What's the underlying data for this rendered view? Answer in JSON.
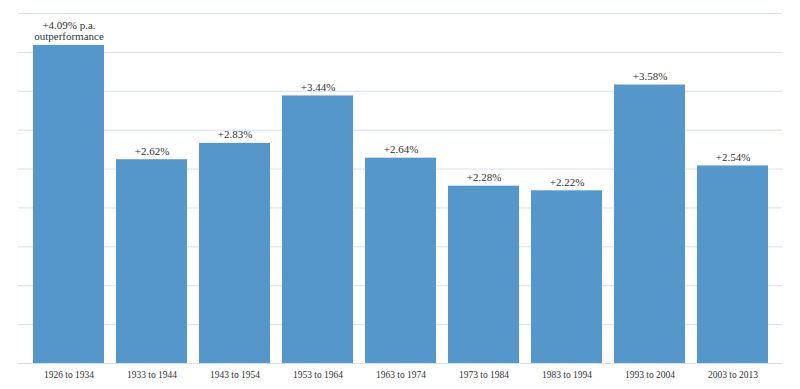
{
  "chart_data": {
    "type": "bar",
    "categories": [
      "1926 to 1934",
      "1933 to 1944",
      "1943 to 1954",
      "1953 to 1964",
      "1963 to 1974",
      "1973 to 1984",
      "1983 to 1994",
      "1993 to 2004",
      "2003 to 2013"
    ],
    "values": [
      4.09,
      2.62,
      2.83,
      3.44,
      2.64,
      2.28,
      2.22,
      3.58,
      2.54
    ],
    "value_labels": [
      "+4.09% p.a.\noutperformance",
      "+2.62%",
      "+2.83%",
      "+3.44%",
      "+2.64%",
      "+2.28%",
      "+2.22%",
      "+3.58%",
      "+2.54%"
    ],
    "color": "#5596cb",
    "ylim": [
      0,
      4.5
    ],
    "yticks": [
      0,
      0.5,
      1,
      1.5,
      2,
      2.5,
      3,
      3.5,
      4,
      4.5
    ],
    "grid": true,
    "data_labels": true,
    "tick_labels": "x"
  }
}
